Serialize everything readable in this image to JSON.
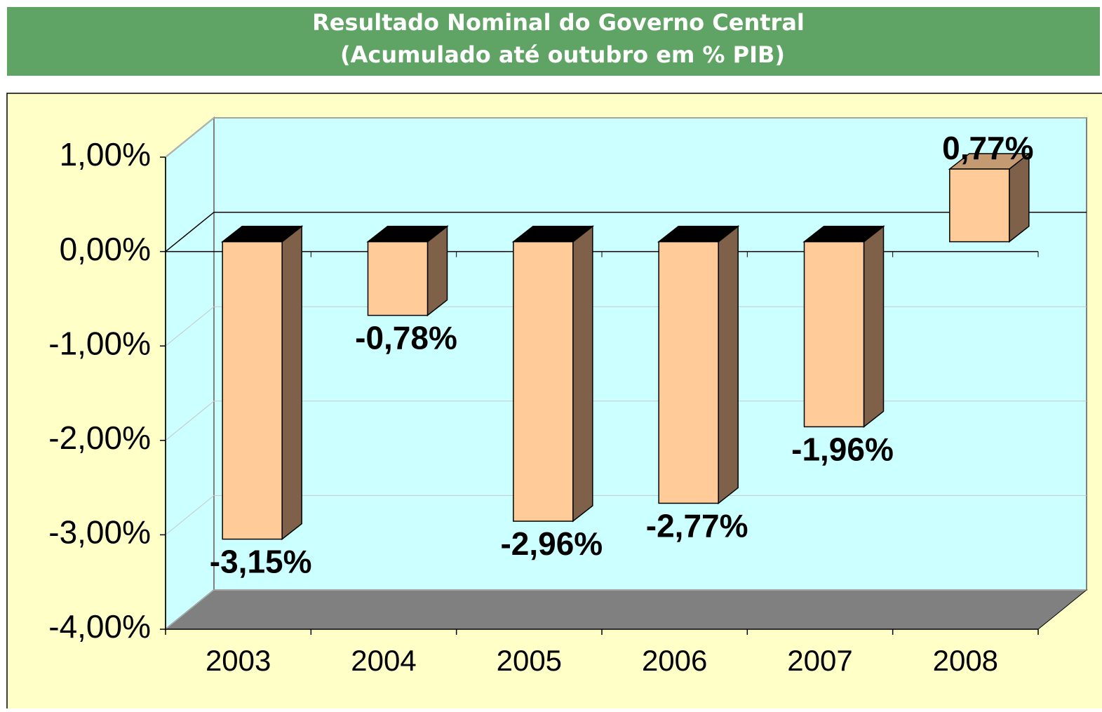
{
  "chart_data": {
    "type": "bar3d",
    "title": "Resultado Nominal do Governo Central",
    "subtitle": "(Acumulado até outubro em % PIB)",
    "categories": [
      "2003",
      "2004",
      "2005",
      "2006",
      "2007",
      "2008"
    ],
    "values": [
      -3.15,
      -0.78,
      -2.96,
      -2.77,
      -1.96,
      0.77
    ],
    "value_labels": [
      "-3,15%",
      "-0,78%",
      "-2,96%",
      "-2,77%",
      "-1,96%",
      "0,77%"
    ],
    "color": "#ffcc99",
    "ylim": [
      -4,
      1
    ],
    "yticks": [
      {
        "value": 1,
        "label": "1,00%"
      },
      {
        "value": 0,
        "label": "0,00%"
      },
      {
        "value": -1,
        "label": "-1,00%"
      },
      {
        "value": -2,
        "label": "-2,00%"
      },
      {
        "value": -3,
        "label": "-3,00%"
      },
      {
        "value": -4,
        "label": "-4,00%"
      }
    ],
    "grid": true
  }
}
